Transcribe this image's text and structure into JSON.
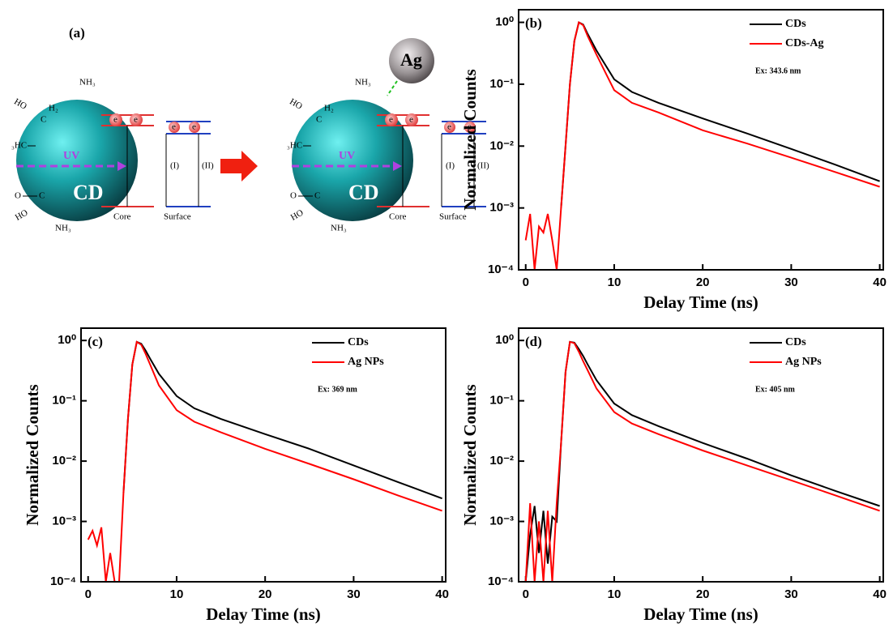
{
  "diagram": {
    "label": "(a)",
    "nh3": "NH₃",
    "ho": "HO",
    "c": "C",
    "h2": "H₂",
    "h3c": "₃HC",
    "o": "O",
    "uv": "UV",
    "cd": "CD",
    "electron": "e",
    "core": "Core",
    "surface": "Surface",
    "path1": "(I)",
    "path2": "(II)",
    "ag": "Ag"
  },
  "chart_data": [
    {
      "type": "line",
      "panel": "(b)",
      "xlabel": "Delay Time (ns)",
      "ylabel": "Normalized Counts",
      "annotation": "Ex: 343.6 nm",
      "log_y": true,
      "legend": "upper right",
      "x": [
        0,
        0.5,
        1,
        1.5,
        2,
        2.5,
        3,
        3.5,
        4,
        4.5,
        5,
        5.5,
        6,
        6.5,
        7,
        8,
        10,
        12,
        15,
        20,
        25,
        30,
        35,
        40
      ],
      "series": [
        {
          "name": "CDs",
          "color": "#000000",
          "values": [
            null,
            null,
            null,
            null,
            null,
            null,
            null,
            null,
            0.001,
            0.01,
            0.1,
            0.5,
            1,
            0.92,
            0.65,
            0.35,
            0.12,
            0.075,
            0.05,
            0.028,
            0.016,
            0.009,
            0.005,
            0.0027
          ]
        },
        {
          "name": "CDs-Ag",
          "color": "#ff0000",
          "values": [
            0.0003,
            0.0008,
            0.0001,
            0.0005,
            0.0004,
            0.0008,
            0.0003,
            0.0001,
            0.001,
            0.01,
            0.1,
            0.5,
            1,
            0.9,
            0.6,
            0.3,
            0.08,
            0.05,
            0.035,
            0.018,
            0.011,
            0.0065,
            0.0038,
            0.0022
          ]
        }
      ],
      "xlim": [
        -0.8,
        40.4
      ],
      "xticks": [
        0,
        10,
        20,
        30,
        40
      ],
      "ylim": [
        0.0001,
        1.6
      ],
      "yticks": [
        {
          "value": 0.0001,
          "label": "10⁻⁴"
        },
        {
          "value": 0.001,
          "label": "10⁻³"
        },
        {
          "value": 0.01,
          "label": "10⁻²"
        },
        {
          "value": 0.1,
          "label": "10⁻¹"
        },
        {
          "value": 1,
          "label": "10⁰"
        }
      ]
    },
    {
      "type": "line",
      "panel": "(c)",
      "xlabel": "Delay Time (ns)",
      "ylabel": "Normalized Counts",
      "annotation": "Ex: 369 nm",
      "log_y": true,
      "legend": "upper right",
      "x": [
        0,
        0.5,
        1,
        1.5,
        2,
        2.5,
        3,
        3.5,
        4,
        4.5,
        5,
        5.5,
        6,
        6.5,
        7,
        8,
        10,
        12,
        15,
        20,
        25,
        30,
        35,
        40
      ],
      "series": [
        {
          "name": "CDs",
          "color": "#000000",
          "values": [
            null,
            null,
            null,
            null,
            null,
            null,
            null,
            null,
            0.003,
            0.05,
            0.4,
            0.95,
            0.88,
            0.68,
            0.5,
            0.28,
            0.12,
            0.075,
            0.05,
            0.028,
            0.016,
            0.0085,
            0.0045,
            0.0024
          ]
        },
        {
          "name": "Ag NPs",
          "color": "#ff0000",
          "values": [
            0.0005,
            0.0007,
            0.0004,
            0.0008,
            0.0001,
            0.0003,
            0.0001,
            0.0001,
            0.003,
            0.05,
            0.4,
            0.95,
            0.85,
            0.6,
            0.4,
            0.18,
            0.07,
            0.045,
            0.03,
            0.016,
            0.009,
            0.005,
            0.0027,
            0.0015
          ]
        }
      ],
      "xlim": [
        -0.8,
        40.4
      ],
      "xticks": [
        0,
        10,
        20,
        30,
        40
      ],
      "ylim": [
        0.0001,
        1.6
      ],
      "yticks": [
        {
          "value": 0.0001,
          "label": "10⁻⁴"
        },
        {
          "value": 0.001,
          "label": "10⁻³"
        },
        {
          "value": 0.01,
          "label": "10⁻²"
        },
        {
          "value": 0.1,
          "label": "10⁻¹"
        },
        {
          "value": 1,
          "label": "10⁰"
        }
      ]
    },
    {
      "type": "line",
      "panel": "(d)",
      "xlabel": "Delay Time (ns)",
      "ylabel": "Normalized Counts",
      "annotation": "Ex: 405 nm",
      "log_y": true,
      "legend": "upper right",
      "x": [
        0,
        0.5,
        1,
        1.5,
        2,
        2.5,
        3,
        3.5,
        4,
        4.5,
        5,
        5.5,
        6,
        6.5,
        7,
        8,
        10,
        12,
        15,
        20,
        25,
        30,
        35,
        40
      ],
      "series": [
        {
          "name": "CDs",
          "color": "#000000",
          "values": [
            0.0001,
            0.0006,
            0.0018,
            0.0003,
            0.0015,
            0.0002,
            0.0012,
            0.001,
            0.02,
            0.3,
            0.95,
            0.92,
            0.72,
            0.55,
            0.4,
            0.22,
            0.09,
            0.058,
            0.038,
            0.02,
            0.011,
            0.0058,
            0.0032,
            0.0018
          ]
        },
        {
          "name": "Ag NPs",
          "color": "#ff0000",
          "values": [
            0.0001,
            0.002,
            0.0001,
            0.001,
            0.0001,
            0.0015,
            0.0001,
            0.002,
            0.02,
            0.3,
            0.95,
            0.9,
            0.65,
            0.45,
            0.32,
            0.16,
            0.065,
            0.042,
            0.028,
            0.015,
            0.0085,
            0.0048,
            0.0027,
            0.0015
          ]
        }
      ],
      "xlim": [
        -0.8,
        40.4
      ],
      "xticks": [
        0,
        10,
        20,
        30,
        40
      ],
      "ylim": [
        0.0001,
        1.6
      ],
      "yticks": [
        {
          "value": 0.0001,
          "label": "10⁻⁴"
        },
        {
          "value": 0.001,
          "label": "10⁻³"
        },
        {
          "value": 0.01,
          "label": "10⁻²"
        },
        {
          "value": 0.1,
          "label": "10⁻¹"
        },
        {
          "value": 1,
          "label": "10⁰"
        }
      ]
    }
  ]
}
